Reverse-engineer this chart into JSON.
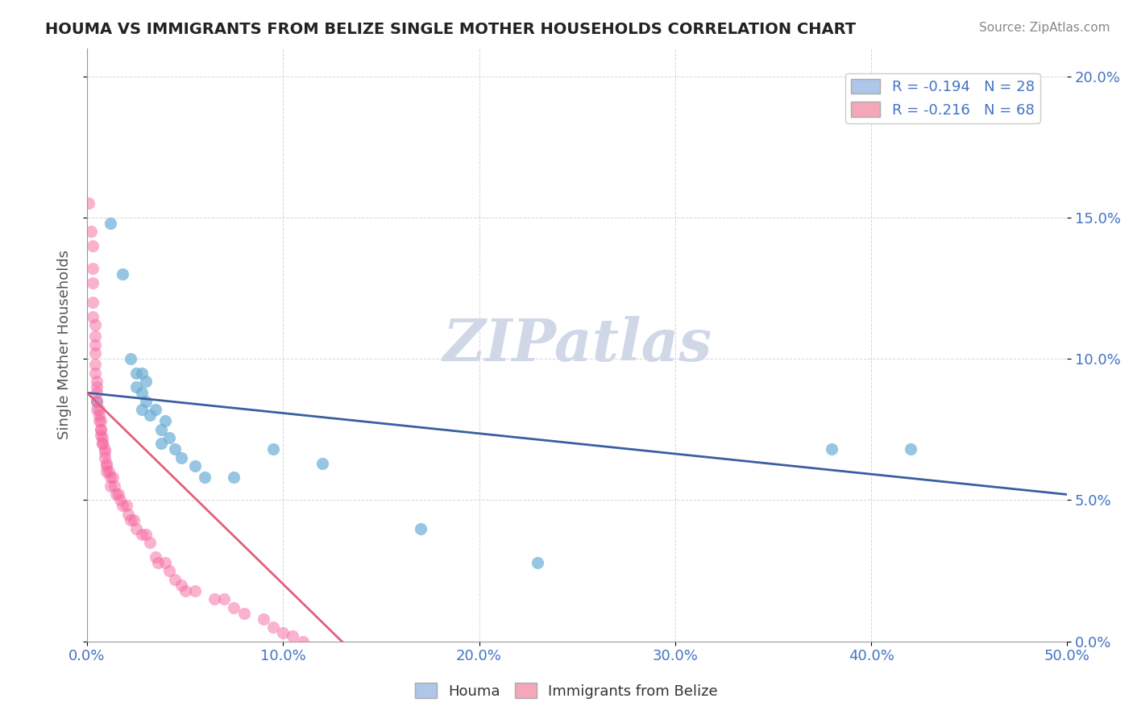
{
  "title": "HOUMA VS IMMIGRANTS FROM BELIZE SINGLE MOTHER HOUSEHOLDS CORRELATION CHART",
  "source": "Source: ZipAtlas.com",
  "ylabel": "Single Mother Households",
  "xlabel_ticks": [
    "0.0%",
    "10.0%",
    "20.0%",
    "30.0%",
    "40.0%",
    "50.0%"
  ],
  "ylabel_ticks": [
    "0.0%",
    "5.0%",
    "10.0%",
    "15.0%",
    "20.0%"
  ],
  "xlim": [
    0.0,
    0.5
  ],
  "ylim": [
    0.0,
    0.21
  ],
  "legend_entries": [
    {
      "label": "R = -0.194   N = 28",
      "color": "#aec6e8"
    },
    {
      "label": "R = -0.216   N = 68",
      "color": "#f4a7b9"
    }
  ],
  "houma_color": "#6baed6",
  "belize_color": "#f768a1",
  "houma_scatter": [
    [
      0.005,
      0.085
    ],
    [
      0.012,
      0.148
    ],
    [
      0.018,
      0.13
    ],
    [
      0.022,
      0.1
    ],
    [
      0.025,
      0.095
    ],
    [
      0.025,
      0.09
    ],
    [
      0.028,
      0.095
    ],
    [
      0.028,
      0.088
    ],
    [
      0.028,
      0.082
    ],
    [
      0.03,
      0.092
    ],
    [
      0.03,
      0.085
    ],
    [
      0.032,
      0.08
    ],
    [
      0.035,
      0.082
    ],
    [
      0.038,
      0.075
    ],
    [
      0.038,
      0.07
    ],
    [
      0.04,
      0.078
    ],
    [
      0.042,
      0.072
    ],
    [
      0.045,
      0.068
    ],
    [
      0.048,
      0.065
    ],
    [
      0.055,
      0.062
    ],
    [
      0.06,
      0.058
    ],
    [
      0.075,
      0.058
    ],
    [
      0.095,
      0.068
    ],
    [
      0.12,
      0.063
    ],
    [
      0.17,
      0.04
    ],
    [
      0.23,
      0.028
    ],
    [
      0.38,
      0.068
    ],
    [
      0.42,
      0.068
    ]
  ],
  "belize_scatter": [
    [
      0.001,
      0.155
    ],
    [
      0.002,
      0.145
    ],
    [
      0.003,
      0.14
    ],
    [
      0.003,
      0.132
    ],
    [
      0.003,
      0.127
    ],
    [
      0.003,
      0.12
    ],
    [
      0.003,
      0.115
    ],
    [
      0.004,
      0.112
    ],
    [
      0.004,
      0.108
    ],
    [
      0.004,
      0.105
    ],
    [
      0.004,
      0.102
    ],
    [
      0.004,
      0.098
    ],
    [
      0.004,
      0.095
    ],
    [
      0.005,
      0.092
    ],
    [
      0.005,
      0.09
    ],
    [
      0.005,
      0.088
    ],
    [
      0.005,
      0.085
    ],
    [
      0.005,
      0.082
    ],
    [
      0.006,
      0.082
    ],
    [
      0.006,
      0.08
    ],
    [
      0.006,
      0.078
    ],
    [
      0.007,
      0.078
    ],
    [
      0.007,
      0.075
    ],
    [
      0.007,
      0.075
    ],
    [
      0.007,
      0.073
    ],
    [
      0.008,
      0.072
    ],
    [
      0.008,
      0.07
    ],
    [
      0.008,
      0.07
    ],
    [
      0.009,
      0.068
    ],
    [
      0.009,
      0.067
    ],
    [
      0.009,
      0.065
    ],
    [
      0.01,
      0.063
    ],
    [
      0.01,
      0.062
    ],
    [
      0.01,
      0.06
    ],
    [
      0.011,
      0.06
    ],
    [
      0.012,
      0.058
    ],
    [
      0.012,
      0.055
    ],
    [
      0.013,
      0.058
    ],
    [
      0.014,
      0.055
    ],
    [
      0.015,
      0.052
    ],
    [
      0.016,
      0.052
    ],
    [
      0.017,
      0.05
    ],
    [
      0.018,
      0.048
    ],
    [
      0.02,
      0.048
    ],
    [
      0.021,
      0.045
    ],
    [
      0.022,
      0.043
    ],
    [
      0.024,
      0.043
    ],
    [
      0.025,
      0.04
    ],
    [
      0.028,
      0.038
    ],
    [
      0.03,
      0.038
    ],
    [
      0.032,
      0.035
    ],
    [
      0.035,
      0.03
    ],
    [
      0.036,
      0.028
    ],
    [
      0.04,
      0.028
    ],
    [
      0.042,
      0.025
    ],
    [
      0.045,
      0.022
    ],
    [
      0.048,
      0.02
    ],
    [
      0.05,
      0.018
    ],
    [
      0.055,
      0.018
    ],
    [
      0.065,
      0.015
    ],
    [
      0.07,
      0.015
    ],
    [
      0.075,
      0.012
    ],
    [
      0.08,
      0.01
    ],
    [
      0.09,
      0.008
    ],
    [
      0.095,
      0.005
    ],
    [
      0.1,
      0.003
    ],
    [
      0.105,
      0.002
    ],
    [
      0.11,
      0.0
    ]
  ],
  "houma_line": {
    "x": [
      0.0,
      0.5
    ],
    "y": [
      0.088,
      0.052
    ]
  },
  "belize_line": {
    "x": [
      0.0,
      0.13
    ],
    "y": [
      0.088,
      0.0
    ]
  },
  "belize_line_dashed": {
    "x": [
      0.13,
      0.32
    ],
    "y": [
      0.0,
      -0.05
    ]
  },
  "watermark": "ZIPatlas",
  "watermark_color": "#d0d8e8"
}
